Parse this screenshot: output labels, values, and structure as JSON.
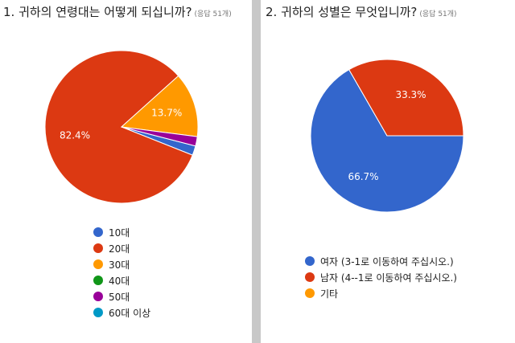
{
  "questions": [
    {
      "title": "1. 귀하의 연령대는 어떻게 되십니까?",
      "responses": "(응답 51개)"
    },
    {
      "title": "2. 귀하의 성별은 무엇입니까?",
      "responses": "(응답 51개)"
    }
  ],
  "chart_data": [
    {
      "type": "pie",
      "categories": [
        "10대",
        "20대",
        "30대",
        "40대",
        "50대",
        "60대 이상"
      ],
      "values": [
        2.0,
        82.4,
        13.7,
        0,
        2.0,
        0
      ],
      "colors": [
        "#3366cc",
        "#dc3912",
        "#ff9900",
        "#109618",
        "#990099",
        "#0099c6"
      ],
      "data_labels": [
        "",
        "82.4%",
        "13.7%",
        "",
        "",
        ""
      ],
      "legend_position": "bottom"
    },
    {
      "type": "pie",
      "categories": [
        "여자 (3-1로 이동하여 주십시오.)",
        "남자 (4--1로 이동하여 주십시오.)",
        "기타"
      ],
      "values": [
        66.7,
        33.3,
        0
      ],
      "colors": [
        "#3366cc",
        "#dc3912",
        "#ff9900"
      ],
      "data_labels": [
        "66.7%",
        "33.3%",
        ""
      ],
      "legend_position": "bottom"
    }
  ]
}
